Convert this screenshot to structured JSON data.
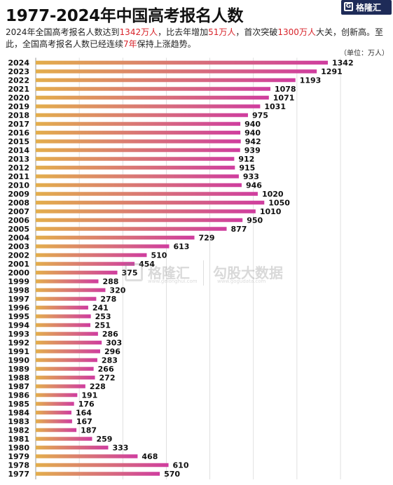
{
  "header": {
    "title": "1977-2024年中国高考报名人数",
    "logo_text": "格隆汇",
    "logo_url": "www.gelonghui.com"
  },
  "subtitle": {
    "p1": "2024年全国高考报名人数达到",
    "h1": "1342万人",
    "p2": "，比去年增加",
    "h2": "51万人",
    "p3": "，首次突破",
    "h3": "1300万人",
    "p4": "大关，创新高。至此，全国高考报名人数已经连续",
    "h4": "7年",
    "p5": "保持上涨趋势。"
  },
  "unit_label": "（单位：万人）",
  "watermark": {
    "brand1": "格隆汇",
    "url1": "www.gelonghui.com",
    "brand2": "勾股大数据",
    "url2": "www.gogudata.com"
  },
  "colors": {
    "highlight": "#d8232a",
    "bar_start": "#e3ae4c",
    "bar_end": "#cf3d9f",
    "logo_bg": "#1e2b58"
  },
  "chart_data": {
    "type": "bar",
    "orientation": "horizontal",
    "title": "1977-2024年中国高考报名人数",
    "unit": "万人",
    "grid": true,
    "xlim": [
      0,
      1400
    ],
    "categories": [
      "2024",
      "2023",
      "2022",
      "2021",
      "2020",
      "2019",
      "2018",
      "2017",
      "2016",
      "2015",
      "2014",
      "2013",
      "2012",
      "2011",
      "2010",
      "2009",
      "2008",
      "2007",
      "2006",
      "2005",
      "2004",
      "2003",
      "2002",
      "2001",
      "2000",
      "1999",
      "1998",
      "1997",
      "1996",
      "1995",
      "1994",
      "1993",
      "1992",
      "1991",
      "1990",
      "1989",
      "1988",
      "1987",
      "1986",
      "1985",
      "1984",
      "1983",
      "1982",
      "1981",
      "1980",
      "1979",
      "1978",
      "1977"
    ],
    "values": [
      1342,
      1291,
      1193,
      1078,
      1071,
      1031,
      975,
      940,
      940,
      942,
      939,
      912,
      915,
      933,
      946,
      1020,
      1050,
      1010,
      950,
      877,
      729,
      613,
      510,
      454,
      375,
      288,
      320,
      278,
      241,
      253,
      251,
      286,
      303,
      296,
      283,
      266,
      272,
      228,
      191,
      176,
      164,
      167,
      187,
      259,
      333,
      468,
      610,
      570
    ]
  }
}
